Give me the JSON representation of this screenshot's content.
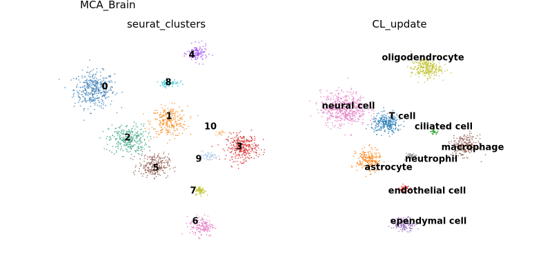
{
  "figure": {
    "suptitle": "MCA_Brain"
  },
  "chart_data": [
    {
      "type": "scatter",
      "title": "seurat_clusters",
      "xlabel": "",
      "ylabel": "",
      "axes_visible": false,
      "legend": "on data",
      "series": [
        {
          "name": "0",
          "color": "#3a7fb8",
          "centroid": [
            -8.0,
            8.0
          ]
        },
        {
          "name": "1",
          "color": "#f7891b",
          "centroid": [
            0.2,
            4.3
          ]
        },
        {
          "name": "2",
          "color": "#35a17d",
          "centroid": [
            -4.3,
            2.2
          ]
        },
        {
          "name": "3",
          "color": "#d62728",
          "centroid": [
            8.2,
            1.3
          ]
        },
        {
          "name": "4",
          "color": "#a04ff0",
          "centroid": [
            3.3,
            12.2
          ]
        },
        {
          "name": "5",
          "color": "#8c564b",
          "centroid": [
            -1.5,
            -0.8
          ]
        },
        {
          "name": "6",
          "color": "#e377c2",
          "centroid": [
            3.8,
            -7.8
          ]
        },
        {
          "name": "7",
          "color": "#bcbd22",
          "centroid": [
            3.6,
            -3.7
          ]
        },
        {
          "name": "8",
          "color": "#20c0cc",
          "centroid": [
            0.2,
            8.8
          ]
        },
        {
          "name": "9",
          "color": "#aec7e8",
          "centroid": [
            4.5,
            0.3
          ]
        },
        {
          "name": "10",
          "color": "#ffbb78",
          "centroid": [
            5.8,
            3.0
          ]
        }
      ]
    },
    {
      "type": "scatter",
      "title": "CL_update",
      "xlabel": "",
      "ylabel": "",
      "axes_visible": false,
      "legend": "on data",
      "series": [
        {
          "name": "oligodendrocyte",
          "color": "#bcbd22",
          "centroid": [
            2.8,
            10.5
          ]
        },
        {
          "name": "neural cell",
          "color": "#e377c2",
          "centroid": [
            -6.2,
            5.8
          ]
        },
        {
          "name": "T cell",
          "color": "#1f77b4",
          "centroid": [
            -1.5,
            4.1
          ]
        },
        {
          "name": "ciliated cell",
          "color": "#2ca02c",
          "centroid": [
            3.6,
            3.1
          ]
        },
        {
          "name": "macrophage",
          "color": "#8c564b",
          "centroid": [
            7.0,
            1.5
          ]
        },
        {
          "name": "neutrophil",
          "color": "#7f7f7f",
          "centroid": [
            1.2,
            0.3
          ]
        },
        {
          "name": "astrocyte",
          "color": "#ff7f0e",
          "centroid": [
            -3.5,
            -0.2
          ]
        },
        {
          "name": "endothelial cell",
          "color": "#d62728",
          "centroid": [
            0.4,
            -3.5
          ]
        },
        {
          "name": "ependymal cell",
          "color": "#9467bd",
          "centroid": [
            0.4,
            -7.6
          ]
        }
      ]
    }
  ]
}
